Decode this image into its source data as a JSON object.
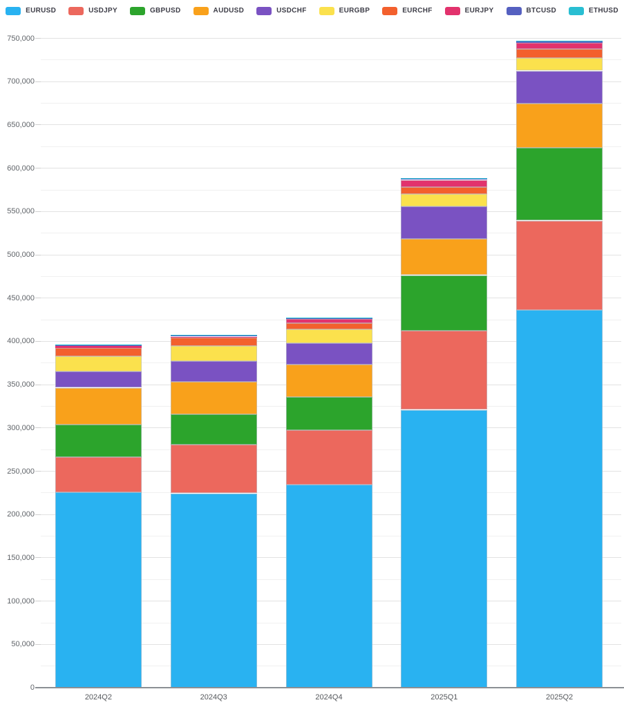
{
  "chart_data": {
    "type": "bar",
    "stacked": true,
    "title": "",
    "xlabel": "",
    "ylabel": "",
    "grid": true,
    "legend_position": "top",
    "ylim": [
      0,
      750000
    ],
    "ytick_step": 50000,
    "yminor_step": 25000,
    "y_ticks": [
      "0",
      "50,000",
      "100,000",
      "150,000",
      "200,000",
      "250,000",
      "300,000",
      "350,000",
      "400,000",
      "450,000",
      "500,000",
      "550,000",
      "600,000",
      "650,000",
      "700,000",
      "750,000"
    ],
    "categories": [
      "2024Q2",
      "2024Q3",
      "2024Q4",
      "2025Q1",
      "2025Q2"
    ],
    "series": [
      {
        "name": "EURUSD",
        "color": "#29b2f1",
        "values": [
          225500,
          224500,
          234500,
          321000,
          436000
        ]
      },
      {
        "name": "USDJPY",
        "color": "#ec685d",
        "values": [
          41000,
          56000,
          63000,
          91000,
          103500
        ]
      },
      {
        "name": "GBPUSD",
        "color": "#2ca42c",
        "values": [
          37500,
          35000,
          38000,
          64500,
          84000
        ]
      },
      {
        "name": "AUDUSD",
        "color": "#f9a11b",
        "values": [
          42500,
          37500,
          37500,
          42000,
          51500
        ]
      },
      {
        "name": "USDCHF",
        "color": "#7a52c2",
        "values": [
          19000,
          24500,
          25000,
          37500,
          37500
        ]
      },
      {
        "name": "EURGBP",
        "color": "#fbe14d",
        "values": [
          17500,
          17500,
          16000,
          14500,
          14500
        ]
      },
      {
        "name": "EURCHF",
        "color": "#f3602d",
        "values": [
          9000,
          9000,
          7000,
          8000,
          11000
        ]
      },
      {
        "name": "EURJPY",
        "color": "#e2326d",
        "values": [
          2500,
          1500,
          4500,
          8000,
          6500
        ]
      },
      {
        "name": "BTCUSD",
        "color": "#5560c0",
        "values": [
          1000,
          1500,
          1500,
          1500,
          2000
        ]
      },
      {
        "name": "ETHUSD",
        "color": "#29bed2",
        "values": [
          500,
          500,
          500,
          500,
          500
        ]
      }
    ],
    "totals": [
      396000,
      407500,
      427500,
      588500,
      747000
    ]
  }
}
